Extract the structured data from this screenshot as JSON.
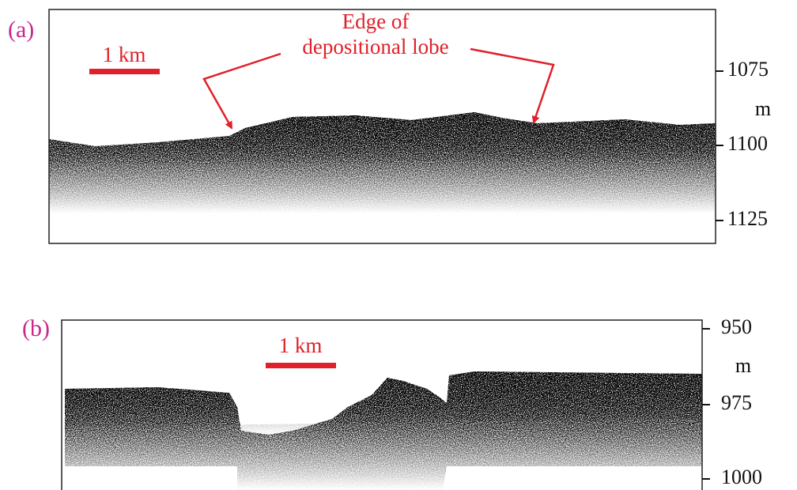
{
  "panels": [
    {
      "label": "(a)",
      "scale_bar": "1 km",
      "unit": "m",
      "ticks": [
        1075,
        1100,
        1125
      ],
      "annotation": [
        "Edge of",
        "depositional lobe"
      ]
    },
    {
      "label": "(b)",
      "scale_bar": "1 km",
      "unit": "m",
      "ticks": [
        950,
        975,
        1000
      ]
    }
  ]
}
